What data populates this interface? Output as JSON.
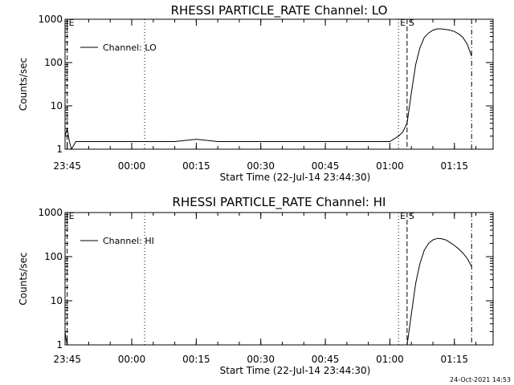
{
  "footer": {
    "timestamp": "24-Oct-2021 14:53"
  },
  "chart_data": [
    {
      "type": "line",
      "title": "RHESSI PARTICLE_RATE Channel: LO",
      "xlabel": "Start Time (22-Jul-14 23:44:30)",
      "ylabel": "Counts/sec",
      "legend": "Channel: LO",
      "legend_position": "top-left",
      "yscale": "log",
      "xlim": [
        "23:44:30",
        "01:24:00"
      ],
      "ylim": [
        1,
        1000
      ],
      "x_tick_labels": [
        "23:45",
        "00:00",
        "00:15",
        "00:30",
        "00:45",
        "01:00",
        "01:15"
      ],
      "y_tick_labels": [
        "1",
        "10",
        "100",
        "1000"
      ],
      "vlines": [
        {
          "time": "23:45:00",
          "style": "dashed",
          "label": "E"
        },
        {
          "time": "00:03:00",
          "style": "dotted",
          "label": ""
        },
        {
          "time": "01:02:00",
          "style": "dotted",
          "label": "E"
        },
        {
          "time": "01:04:00",
          "style": "dashed",
          "label": "S"
        },
        {
          "time": "01:19:00",
          "style": "dashdot",
          "label": ""
        }
      ],
      "series": [
        {
          "x": [
            "23:44:30",
            "23:45:00",
            "23:45:30",
            "23:46:00",
            "23:47:00",
            "23:50:00",
            "23:55:00",
            "00:00:00",
            "00:05:00",
            "00:10:00",
            "00:15:00",
            "00:20:00",
            "00:25:00",
            "00:30:00",
            "00:35:00",
            "00:40:00",
            "00:45:00",
            "00:50:00",
            "00:55:00",
            "01:00:00",
            "01:02:00",
            "01:03:00",
            "01:04:00",
            "01:05:00",
            "01:06:00",
            "01:07:00",
            "01:08:00",
            "01:09:00",
            "01:10:00",
            "01:11:00",
            "01:12:00",
            "01:13:00",
            "01:14:00",
            "01:15:00",
            "01:16:00",
            "01:17:00",
            "01:18:00",
            "01:19:00"
          ],
          "values": [
            2,
            3,
            1.5,
            1,
            1.5,
            1.5,
            1.5,
            1.5,
            1.5,
            1.5,
            1.7,
            1.5,
            1.5,
            1.5,
            1.5,
            1.5,
            1.5,
            1.5,
            1.5,
            1.5,
            2,
            2.5,
            4,
            20,
            90,
            220,
            380,
            480,
            560,
            600,
            600,
            580,
            560,
            520,
            460,
            380,
            260,
            140
          ]
        }
      ]
    },
    {
      "type": "line",
      "title": "RHESSI PARTICLE_RATE Channel: HI",
      "xlabel": "Start Time (22-Jul-14 23:44:30)",
      "ylabel": "Counts/sec",
      "legend": "Channel: HI",
      "legend_position": "top-left",
      "yscale": "log",
      "xlim": [
        "23:44:30",
        "01:24:00"
      ],
      "ylim": [
        1,
        1000
      ],
      "x_tick_labels": [
        "23:45",
        "00:00",
        "00:15",
        "00:30",
        "00:45",
        "01:00",
        "01:15"
      ],
      "y_tick_labels": [
        "1",
        "10",
        "100",
        "1000"
      ],
      "vlines": [
        {
          "time": "23:45:00",
          "style": "dashed",
          "label": "E"
        },
        {
          "time": "00:03:00",
          "style": "dotted",
          "label": ""
        },
        {
          "time": "01:02:00",
          "style": "dotted",
          "label": "E"
        },
        {
          "time": "01:04:00",
          "style": "dashed",
          "label": "S"
        },
        {
          "time": "01:19:00",
          "style": "dashdot",
          "label": ""
        }
      ],
      "series": [
        {
          "x": [
            "23:44:30",
            "23:44:45",
            "23:45:00",
            "01:04:00",
            "01:05:00",
            "01:06:00",
            "01:07:00",
            "01:08:00",
            "01:09:00",
            "01:10:00",
            "01:11:00",
            "01:12:00",
            "01:13:00",
            "01:14:00",
            "01:15:00",
            "01:16:00",
            "01:17:00",
            "01:18:00",
            "01:19:00"
          ],
          "values": [
            2,
            1.3,
            1,
            1,
            5,
            25,
            70,
            140,
            200,
            240,
            260,
            255,
            240,
            210,
            180,
            150,
            120,
            90,
            60
          ]
        }
      ]
    }
  ]
}
